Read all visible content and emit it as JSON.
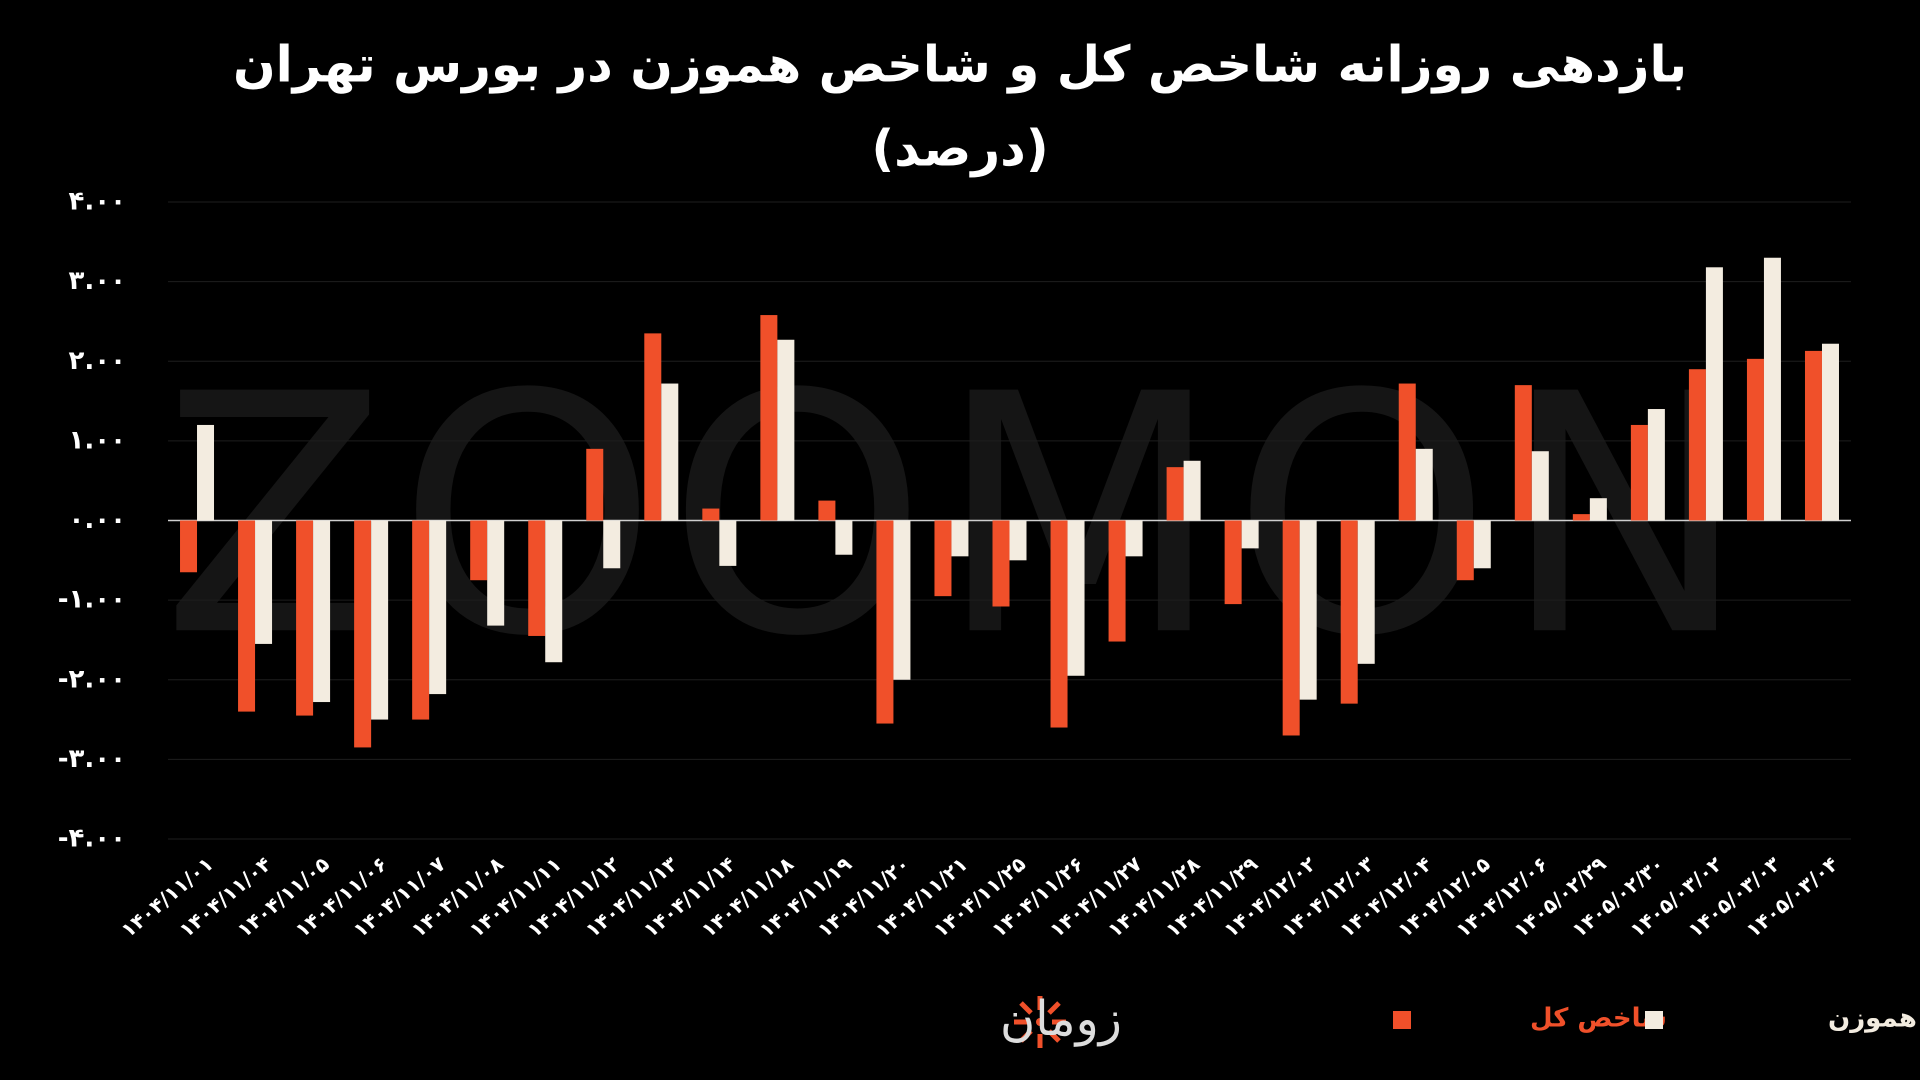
{
  "chart_data": {
    "type": "bar",
    "title": "بازدهی روزانه شاخص کل و شاخص هموزن در بورس تهران",
    "subtitle": "(درصد)",
    "watermark": "ZOOMON",
    "logo": "زومان",
    "categories": [
      "۱۴۰۴/۱۱/۰۱",
      "۱۴۰۴/۱۱/۰۴",
      "۱۴۰۴/۱۱/۰۵",
      "۱۴۰۴/۱۱/۰۶",
      "۱۴۰۴/۱۱/۰۷",
      "۱۴۰۴/۱۱/۰۸",
      "۱۴۰۴/۱۱/۱۱",
      "۱۴۰۴/۱۱/۱۲",
      "۱۴۰۴/۱۱/۱۳",
      "۱۴۰۴/۱۱/۱۴",
      "۱۴۰۴/۱۱/۱۸",
      "۱۴۰۴/۱۱/۱۹",
      "۱۴۰۴/۱۱/۲۰",
      "۱۴۰۴/۱۱/۲۱",
      "۱۴۰۴/۱۱/۲۵",
      "۱۴۰۴/۱۱/۲۶",
      "۱۴۰۴/۱۱/۲۷",
      "۱۴۰۴/۱۱/۲۸",
      "۱۴۰۴/۱۱/۲۹",
      "۱۴۰۴/۱۲/۰۲",
      "۱۴۰۴/۱۲/۰۳",
      "۱۴۰۴/۱۲/۰۴",
      "۱۴۰۴/۱۲/۰۵",
      "۱۴۰۴/۱۲/۰۶",
      "۱۴۰۵/۰۲/۲۹",
      "۱۴۰۵/۰۲/۳۰",
      "۱۴۰۵/۰۳/۰۲",
      "۱۴۰۵/۰۳/۰۳",
      "۱۴۰۵/۰۳/۰۴"
    ],
    "series": [
      {
        "name": "شاخص کل",
        "color": "#f0502a",
        "values": [
          -0.65,
          -2.4,
          -2.45,
          -2.85,
          -2.5,
          -0.75,
          -1.45,
          0.9,
          2.35,
          0.15,
          2.58,
          0.25,
          -2.55,
          -0.95,
          -1.08,
          -2.6,
          -1.52,
          0.67,
          -1.05,
          -2.7,
          -2.3,
          1.72,
          -0.75,
          1.7,
          0.08,
          1.2,
          1.9,
          2.03,
          2.13
        ]
      },
      {
        "name": "شاخص هموزن",
        "color": "#f3ece0",
        "values": [
          1.2,
          -1.55,
          -2.28,
          -2.5,
          -2.18,
          -1.32,
          -1.78,
          -0.6,
          1.72,
          -0.57,
          2.27,
          -0.43,
          -2.0,
          -0.45,
          -0.5,
          -1.95,
          -0.45,
          0.75,
          -0.35,
          -2.25,
          -1.8,
          0.9,
          -0.6,
          0.87,
          0.28,
          1.4,
          3.18,
          3.3,
          2.22
        ]
      }
    ],
    "ylim": [
      -4,
      4
    ],
    "yticks": [
      {
        "value": -4,
        "label": "-۴.۰۰"
      },
      {
        "value": -3,
        "label": "-۳.۰۰"
      },
      {
        "value": -2,
        "label": "-۲.۰۰"
      },
      {
        "value": -1,
        "label": "-۱.۰۰"
      },
      {
        "value": 0,
        "label": "۰.۰۰"
      },
      {
        "value": 1,
        "label": "۱.۰۰"
      },
      {
        "value": 2,
        "label": "۲.۰۰"
      },
      {
        "value": 3,
        "label": "۳.۰۰"
      },
      {
        "value": 4,
        "label": "۴.۰۰"
      }
    ],
    "grid": true
  }
}
